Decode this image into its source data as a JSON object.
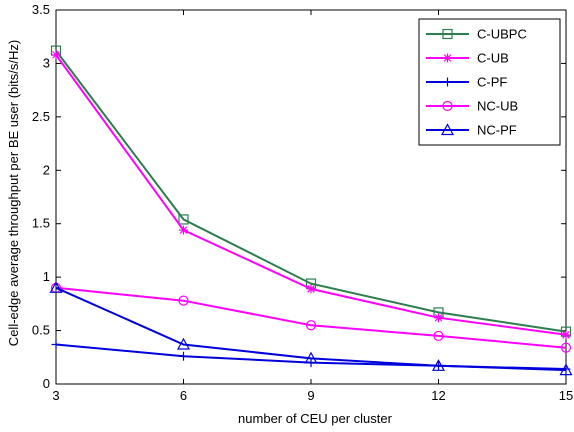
{
  "chart_data": {
    "type": "line",
    "xlabel": "number of CEU per cluster",
    "ylabel": "Cell-edge average throughput per BE user (bits/s/Hz)",
    "xlim": [
      3,
      15
    ],
    "ylim": [
      0,
      3.5
    ],
    "xticks": [
      3,
      6,
      9,
      12,
      15
    ],
    "yticks": [
      0,
      0.5,
      1,
      1.5,
      2,
      2.5,
      3,
      3.5
    ],
    "ytick_labels": [
      "0",
      "0.5",
      "1",
      "1.5",
      "2",
      "2.5",
      "3",
      "3.5"
    ],
    "grid": false,
    "legend_position": "top-right",
    "x": [
      3,
      6,
      9,
      12,
      15
    ],
    "series": [
      {
        "name": "C-UBPC",
        "values": [
          3.12,
          1.54,
          0.94,
          0.67,
          0.49
        ],
        "color": "#2e7d4f",
        "marker": "square"
      },
      {
        "name": "C-UB",
        "values": [
          3.08,
          1.44,
          0.89,
          0.62,
          0.46
        ],
        "color": "#ff00ff",
        "marker": "star"
      },
      {
        "name": "C-PF",
        "values": [
          0.37,
          0.26,
          0.2,
          0.17,
          0.14
        ],
        "color": "#0000dd",
        "marker": "plus"
      },
      {
        "name": "NC-UB",
        "values": [
          0.9,
          0.78,
          0.55,
          0.45,
          0.34
        ],
        "color": "#ff00ff",
        "marker": "circle"
      },
      {
        "name": "NC-PF",
        "values": [
          0.9,
          0.37,
          0.24,
          0.17,
          0.13
        ],
        "color": "#0000dd",
        "marker": "triangle"
      }
    ]
  }
}
